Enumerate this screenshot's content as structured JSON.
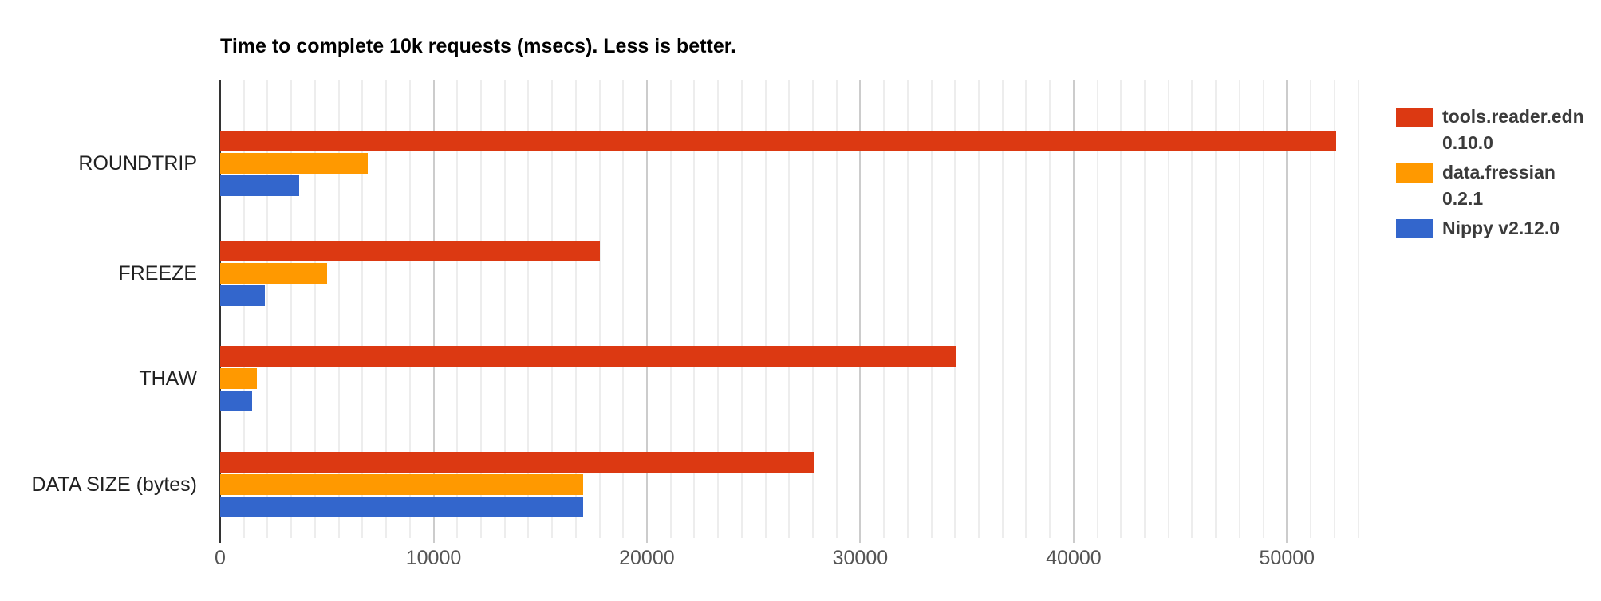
{
  "chart_data": {
    "type": "bar",
    "orientation": "horizontal",
    "title": "Time to complete 10k requests (msecs). Less is better.",
    "categories": [
      "ROUNDTRIP",
      "FREEZE",
      "THAW",
      "DATA SIZE (bytes)"
    ],
    "series": [
      {
        "name": "tools.reader.edn 0.10.0",
        "color": "#dc3912",
        "values": [
          52300,
          17800,
          34500,
          27800
        ]
      },
      {
        "name": "data.fressian 0.2.1",
        "color": "#ff9900",
        "values": [
          6900,
          5000,
          1700,
          17000
        ]
      },
      {
        "name": "Nippy v2.12.0",
        "color": "#3366cc",
        "values": [
          3700,
          2100,
          1500,
          17000
        ]
      }
    ],
    "xlabel": "",
    "ylabel": "",
    "xlim": [
      0,
      54400
    ],
    "x_ticks": [
      0,
      10000,
      20000,
      30000,
      40000,
      50000
    ],
    "x_tick_labels": [
      "0",
      "10000",
      "20000",
      "30000",
      "40000",
      "50000"
    ],
    "minor_gridlines_per_major": 9,
    "grid": true,
    "legend_position": "right",
    "background_color": "#ffffff",
    "axis_color": "#333333",
    "major_grid_color": "#cccccc",
    "minor_grid_color": "#ededed"
  },
  "legend": {
    "items": [
      {
        "label_lines": [
          "tools.reader.edn",
          "0.10.0"
        ],
        "color": "#dc3912"
      },
      {
        "label_lines": [
          "data.fressian",
          "0.2.1"
        ],
        "color": "#ff9900"
      },
      {
        "label_lines": [
          "Nippy v2.12.0"
        ],
        "color": "#3366cc"
      }
    ]
  }
}
